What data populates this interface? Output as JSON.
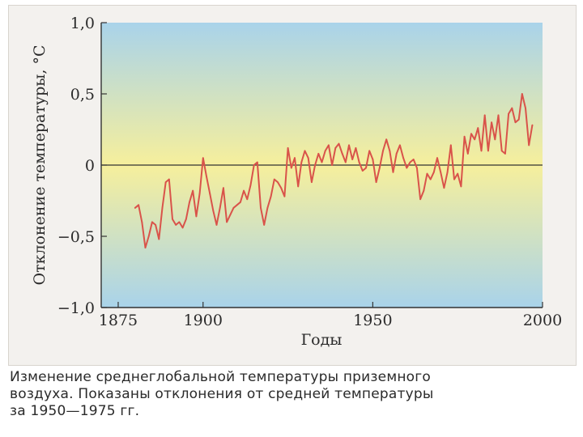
{
  "colors": {
    "line": "#d9534a",
    "axis": "#333333",
    "gradient_top": "#a9d3ea",
    "gradient_mid": "#f6ef9c",
    "gradient_bottom": "#a9d3ea",
    "text": "#2a2a2a"
  },
  "chart_data": {
    "type": "line",
    "title": "",
    "xlabel": "Годы",
    "ylabel": "Отклонение температуры, °C",
    "xlim": [
      1870,
      2000
    ],
    "ylim": [
      -1.0,
      1.0
    ],
    "x_ticks": [
      1875,
      1900,
      1950,
      2000
    ],
    "y_ticks": [
      1.0,
      0.5,
      0,
      -0.5,
      -1.0
    ],
    "y_tick_labels": [
      "1,0",
      "0,5",
      "0",
      "−0,5",
      "−1,0"
    ],
    "x_tick_labels": [
      "1875",
      "1900",
      "1950",
      "2000"
    ],
    "zero_line": true,
    "background": "vertical gradient: blue top, yellow near zero, blue bottom",
    "series": [
      {
        "x": [
          1880,
          1881,
          1882,
          1883,
          1884,
          1885,
          1886,
          1887,
          1888,
          1889,
          1890,
          1891,
          1892,
          1893,
          1894,
          1895,
          1896,
          1897,
          1898,
          1899,
          1900,
          1901,
          1902,
          1903,
          1904,
          1905,
          1906,
          1907,
          1908,
          1909,
          1910,
          1911,
          1912,
          1913,
          1914,
          1915,
          1916,
          1917,
          1918,
          1919,
          1920,
          1921,
          1922,
          1923,
          1924,
          1925,
          1926,
          1927,
          1928,
          1929,
          1930,
          1931,
          1932,
          1933,
          1934,
          1935,
          1936,
          1937,
          1938,
          1939,
          1940,
          1941,
          1942,
          1943,
          1944,
          1945,
          1946,
          1947,
          1948,
          1949,
          1950,
          1951,
          1952,
          1953,
          1954,
          1955,
          1956,
          1957,
          1958,
          1959,
          1960,
          1961,
          1962,
          1963,
          1964,
          1965,
          1966,
          1967,
          1968,
          1969,
          1970,
          1971,
          1972,
          1973,
          1974,
          1975,
          1976,
          1977,
          1978,
          1979,
          1980,
          1981,
          1982,
          1983,
          1984,
          1985,
          1986,
          1987,
          1988,
          1989,
          1990,
          1991,
          1992,
          1993,
          1994,
          1995,
          1996,
          1997
        ],
        "values": [
          -0.3,
          -0.28,
          -0.4,
          -0.58,
          -0.5,
          -0.4,
          -0.42,
          -0.52,
          -0.3,
          -0.12,
          -0.1,
          -0.38,
          -0.42,
          -0.4,
          -0.44,
          -0.38,
          -0.26,
          -0.18,
          -0.36,
          -0.2,
          0.05,
          -0.08,
          -0.2,
          -0.32,
          -0.42,
          -0.3,
          -0.16,
          -0.4,
          -0.35,
          -0.3,
          -0.28,
          -0.26,
          -0.18,
          -0.24,
          -0.14,
          0.0,
          0.02,
          -0.3,
          -0.42,
          -0.3,
          -0.22,
          -0.1,
          -0.12,
          -0.16,
          -0.22,
          0.12,
          -0.02,
          0.05,
          -0.15,
          0.02,
          0.1,
          0.05,
          -0.12,
          0.0,
          0.08,
          0.02,
          0.1,
          0.14,
          0.0,
          0.12,
          0.15,
          0.08,
          0.02,
          0.14,
          0.04,
          0.12,
          0.02,
          -0.04,
          -0.02,
          0.1,
          0.04,
          -0.12,
          -0.02,
          0.1,
          0.18,
          0.1,
          -0.05,
          0.08,
          0.14,
          0.05,
          -0.02,
          0.02,
          0.04,
          -0.02,
          -0.24,
          -0.18,
          -0.06,
          -0.1,
          -0.05,
          0.05,
          -0.05,
          -0.16,
          -0.05,
          0.14,
          -0.1,
          -0.06,
          -0.15,
          0.2,
          0.08,
          0.22,
          0.18,
          0.26,
          0.1,
          0.35,
          0.1,
          0.3,
          0.18,
          0.35,
          0.1,
          0.08,
          0.36,
          0.4,
          0.3,
          0.32,
          0.5,
          0.4,
          0.14,
          0.28
        ]
      }
    ]
  },
  "caption": {
    "line1": "Изменение среднеглобальной температуры приземного",
    "line2": "воздуха. Показаны отклонения от средней температуры",
    "line3": "за 1950—1975 гг."
  }
}
